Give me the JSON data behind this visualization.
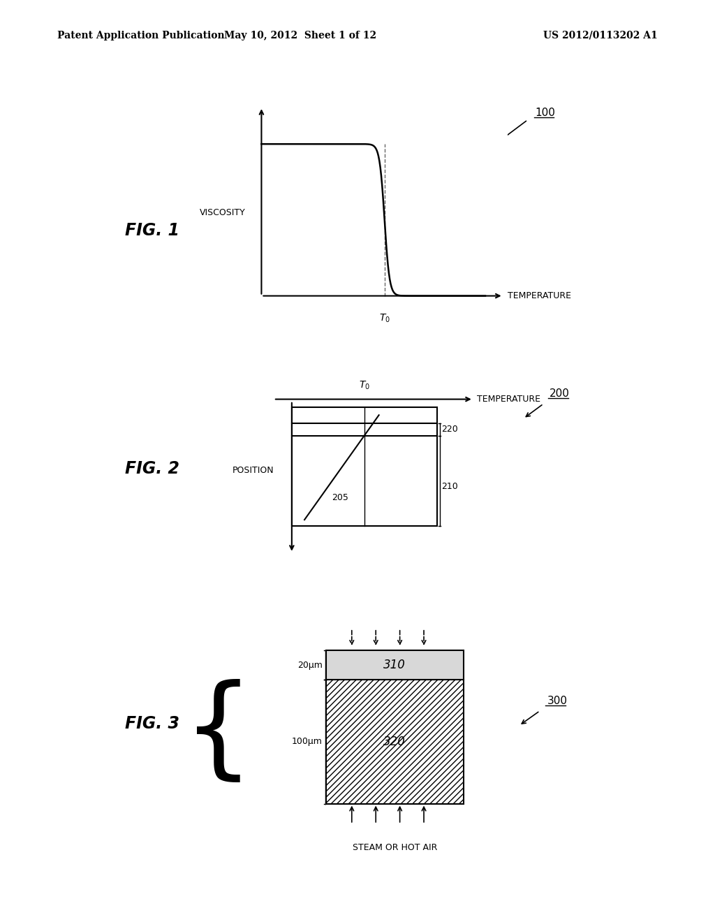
{
  "header_left": "Patent Application Publication",
  "header_center": "May 10, 2012  Sheet 1 of 12",
  "header_right": "US 2012/0113202 A1",
  "fig1_label": "FIG. 1",
  "fig1_ref": "100",
  "fig1_xlabel": "TEMPERATURE",
  "fig1_ylabel": "VISCOSITY",
  "fig2_label": "FIG. 2",
  "fig2_ref": "200",
  "fig2_ref2": "220",
  "fig2_ref3": "205",
  "fig2_ref4": "210",
  "fig2_xlabel": "TEMPERATURE",
  "fig2_ylabel": "POSITION",
  "fig3_label": "FIG. 3",
  "fig3_ref": "300",
  "fig3_ref2": "310",
  "fig3_ref3": "320",
  "fig3_dim1": "20μm",
  "fig3_dim2": "100μm",
  "fig3_bottom_label": "STEAM OR HOT AIR",
  "bg_color": "#ffffff",
  "line_color": "#000000",
  "text_color": "#000000"
}
